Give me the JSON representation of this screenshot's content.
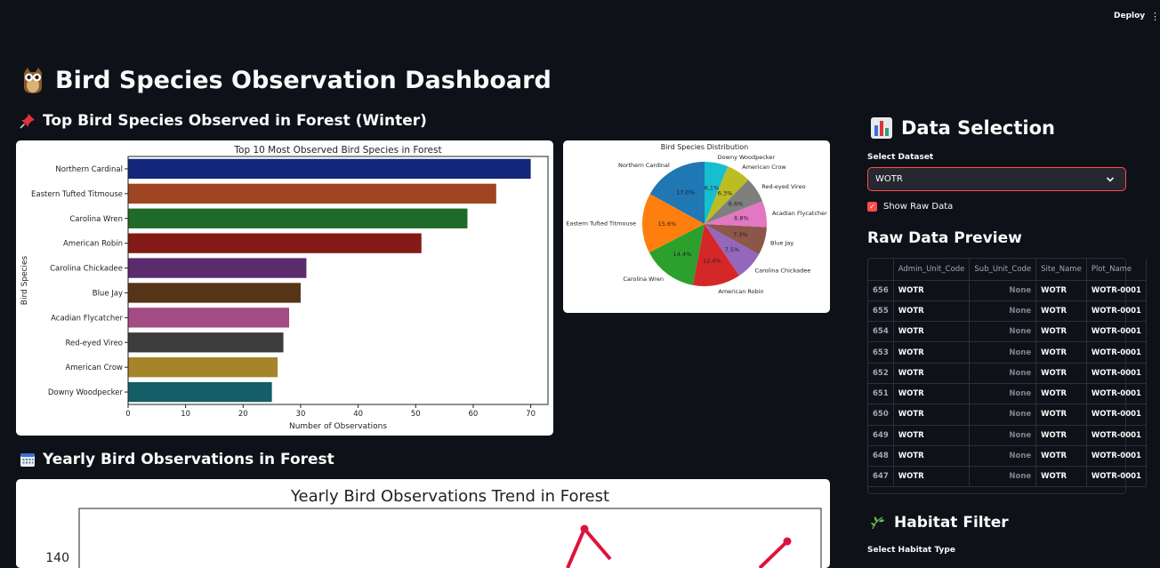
{
  "toolbar": {
    "deploy_label": "Deploy",
    "menu_glyph": "⋮"
  },
  "page": {
    "title": "Bird Species Observation Dashboard"
  },
  "sections": {
    "top_species": "Top Bird Species Observed in Forest (Winter)",
    "yearly": "Yearly Bird Observations in Forest"
  },
  "sidebar": {
    "data_selection_title": "Data Selection",
    "select_dataset_label": "Select Dataset",
    "dataset_value": "WOTR",
    "show_raw_label": "Show Raw Data",
    "raw_preview_title": "Raw Data Preview",
    "habitat_title": "Habitat Filter",
    "habitat_label": "Select Habitat Type"
  },
  "raw_table": {
    "columns": [
      "Admin_Unit_Code",
      "Sub_Unit_Code",
      "Site_Name",
      "Plot_Name"
    ],
    "rows": [
      {
        "idx": "656",
        "admin": "WOTR",
        "sub": "None",
        "site": "WOTR",
        "plot": "WOTR-0001"
      },
      {
        "idx": "655",
        "admin": "WOTR",
        "sub": "None",
        "site": "WOTR",
        "plot": "WOTR-0001"
      },
      {
        "idx": "654",
        "admin": "WOTR",
        "sub": "None",
        "site": "WOTR",
        "plot": "WOTR-0001"
      },
      {
        "idx": "653",
        "admin": "WOTR",
        "sub": "None",
        "site": "WOTR",
        "plot": "WOTR-0001"
      },
      {
        "idx": "652",
        "admin": "WOTR",
        "sub": "None",
        "site": "WOTR",
        "plot": "WOTR-0001"
      },
      {
        "idx": "651",
        "admin": "WOTR",
        "sub": "None",
        "site": "WOTR",
        "plot": "WOTR-0001"
      },
      {
        "idx": "650",
        "admin": "WOTR",
        "sub": "None",
        "site": "WOTR",
        "plot": "WOTR-0001"
      },
      {
        "idx": "649",
        "admin": "WOTR",
        "sub": "None",
        "site": "WOTR",
        "plot": "WOTR-0001"
      },
      {
        "idx": "648",
        "admin": "WOTR",
        "sub": "None",
        "site": "WOTR",
        "plot": "WOTR-0001"
      },
      {
        "idx": "647",
        "admin": "WOTR",
        "sub": "None",
        "site": "WOTR",
        "plot": "WOTR-0001"
      }
    ]
  },
  "chart_data": [
    {
      "type": "bar",
      "orientation": "horizontal",
      "title": "Top 10 Most Observed Bird Species in Forest",
      "xlabel": "Number of Observations",
      "ylabel": "Bird Species",
      "xlim": [
        0,
        73
      ],
      "xticks": [
        0,
        10,
        20,
        30,
        40,
        50,
        60,
        70
      ],
      "categories": [
        "Northern Cardinal",
        "Eastern Tufted Titmouse",
        "Carolina Wren",
        "American Robin",
        "Carolina Chickadee",
        "Blue Jay",
        "Acadian Flycatcher",
        "Red-eyed Vireo",
        "American Crow",
        "Downy Woodpecker"
      ],
      "values": [
        70,
        64,
        59,
        51,
        31,
        30,
        28,
        27,
        26,
        25
      ],
      "colors": [
        "#13277a",
        "#a04522",
        "#1f6a28",
        "#841a16",
        "#5c2b6d",
        "#553417",
        "#a34b83",
        "#3d3d3d",
        "#a6842a",
        "#135e67"
      ]
    },
    {
      "type": "pie",
      "title": "Bird Species Distribution",
      "labels": [
        "Northern Cardinal",
        "Eastern Tufted Titmouse",
        "Carolina Wren",
        "American Robin",
        "Carolina Chickadee",
        "Blue Jay",
        "Acadian Flycatcher",
        "Red-eyed Vireo",
        "American Crow",
        "Downy Woodpecker"
      ],
      "values": [
        17.0,
        15.6,
        14.4,
        12.4,
        7.5,
        7.3,
        6.8,
        6.6,
        6.3,
        6.1
      ],
      "pct_labels": [
        "17.0%",
        "15.6%",
        "14.4%",
        "12.4%",
        "7.5%",
        "7.3%",
        "6.8%",
        "6.6%",
        "6.3%",
        "6.1%"
      ],
      "colors": [
        "#1f77b4",
        "#ff7f0e",
        "#2ca02c",
        "#d62728",
        "#9467bd",
        "#8c564b",
        "#e377c2",
        "#7f7f7f",
        "#bcbd22",
        "#17becf"
      ]
    },
    {
      "type": "line",
      "title": "Yearly Bird Observations Trend in Forest",
      "ytick_visible": "140",
      "line_color": "#dc143c"
    }
  ]
}
